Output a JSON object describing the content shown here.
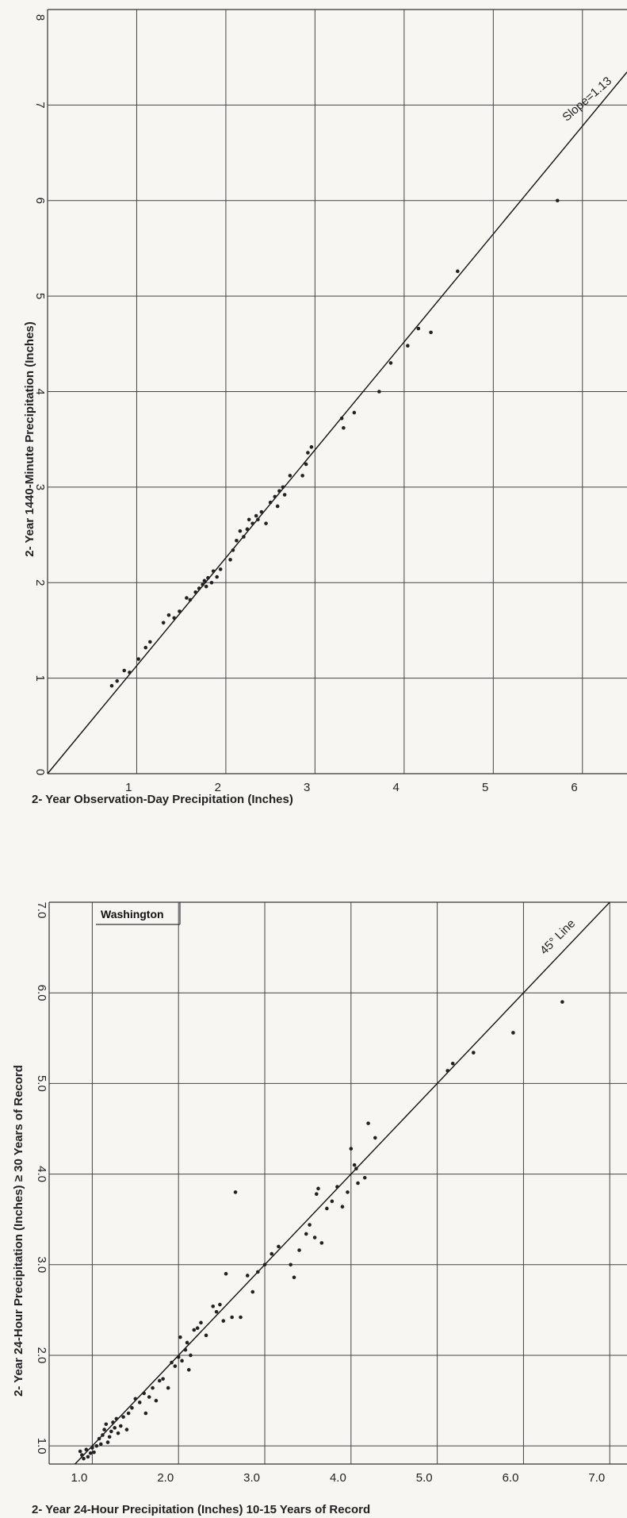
{
  "chart_data": [
    {
      "type": "scatter",
      "title": "",
      "xlabel": "2- Year Observation-Day Precipitation (Inches)",
      "ylabel": "2- Year 1440-Minute Precipitation (Inches)",
      "xlim": [
        0,
        6.5
      ],
      "ylim": [
        0,
        8
      ],
      "x_ticks": [
        1,
        2,
        3,
        4,
        5,
        6
      ],
      "x_tick_labels": [
        "1",
        "2",
        "3",
        "4",
        "5",
        "6"
      ],
      "y_ticks": [
        0,
        1,
        2,
        3,
        4,
        5,
        6,
        7,
        8
      ],
      "y_tick_labels": [
        "0",
        "1",
        "2",
        "3",
        "4",
        "5",
        "6",
        "7",
        "8"
      ],
      "grid": true,
      "reference_line": {
        "slope": 1.13,
        "intercept": 0,
        "label": "Slope=1.13"
      },
      "points": [
        [
          0.72,
          0.92
        ],
        [
          0.78,
          0.97
        ],
        [
          0.86,
          1.08
        ],
        [
          0.92,
          1.06
        ],
        [
          1.02,
          1.2
        ],
        [
          1.1,
          1.32
        ],
        [
          1.15,
          1.38
        ],
        [
          1.3,
          1.58
        ],
        [
          1.36,
          1.66
        ],
        [
          1.42,
          1.63
        ],
        [
          1.48,
          1.7
        ],
        [
          1.56,
          1.84
        ],
        [
          1.6,
          1.82
        ],
        [
          1.66,
          1.9
        ],
        [
          1.7,
          1.94
        ],
        [
          1.74,
          1.98
        ],
        [
          1.76,
          2.02
        ],
        [
          1.78,
          1.96
        ],
        [
          1.8,
          2.05
        ],
        [
          1.84,
          2.0
        ],
        [
          1.86,
          2.12
        ],
        [
          1.9,
          2.06
        ],
        [
          1.94,
          2.14
        ],
        [
          2.05,
          2.24
        ],
        [
          2.08,
          2.34
        ],
        [
          2.12,
          2.44
        ],
        [
          2.16,
          2.54
        ],
        [
          2.2,
          2.48
        ],
        [
          2.24,
          2.56
        ],
        [
          2.26,
          2.66
        ],
        [
          2.3,
          2.62
        ],
        [
          2.34,
          2.7
        ],
        [
          2.36,
          2.66
        ],
        [
          2.4,
          2.74
        ],
        [
          2.45,
          2.62
        ],
        [
          2.5,
          2.84
        ],
        [
          2.55,
          2.9
        ],
        [
          2.58,
          2.8
        ],
        [
          2.6,
          2.96
        ],
        [
          2.64,
          3.0
        ],
        [
          2.66,
          2.92
        ],
        [
          2.72,
          3.12
        ],
        [
          2.86,
          3.12
        ],
        [
          2.9,
          3.24
        ],
        [
          2.92,
          3.36
        ],
        [
          2.96,
          3.42
        ],
        [
          3.3,
          3.72
        ],
        [
          3.32,
          3.62
        ],
        [
          3.44,
          3.78
        ],
        [
          3.72,
          4.0
        ],
        [
          3.85,
          4.3
        ],
        [
          4.04,
          4.48
        ],
        [
          4.16,
          4.66
        ],
        [
          4.3,
          4.62
        ],
        [
          4.6,
          5.26
        ],
        [
          5.72,
          6.0
        ]
      ]
    },
    {
      "type": "scatter",
      "title": "",
      "inset_label": "Washington",
      "xlabel": "2- Year 24-Hour Precipitation (Inches) 10-15 Years of Record",
      "ylabel": "2- Year 24-Hour Precipitation (Inches) ≥ 30 Years of Record",
      "xlim": [
        0.5,
        7.2
      ],
      "ylim": [
        0.8,
        7.0
      ],
      "x_ticks": [
        1.0,
        2.0,
        3.0,
        4.0,
        5.0,
        6.0,
        7.0
      ],
      "x_tick_labels": [
        "1.0",
        "2.0",
        "3.0",
        "4.0",
        "5.0",
        "6.0",
        "7.0"
      ],
      "y_ticks": [
        1.0,
        2.0,
        3.0,
        4.0,
        5.0,
        6.0,
        7.0
      ],
      "y_tick_labels": [
        "1.0",
        "2.0",
        "3.0",
        "4.0",
        "5.0",
        "6.0",
        "7.0"
      ],
      "grid": true,
      "reference_line": {
        "slope": 1,
        "intercept": 0,
        "label": "45° Line"
      },
      "points": [
        [
          0.86,
          0.94
        ],
        [
          0.88,
          0.9
        ],
        [
          0.9,
          0.86
        ],
        [
          0.93,
          0.96
        ],
        [
          0.95,
          0.88
        ],
        [
          0.98,
          0.92
        ],
        [
          1.0,
          0.98
        ],
        [
          1.02,
          0.93
        ],
        [
          1.05,
          1.0
        ],
        [
          1.08,
          1.08
        ],
        [
          1.1,
          1.02
        ],
        [
          1.12,
          1.12
        ],
        [
          1.14,
          1.18
        ],
        [
          1.16,
          1.24
        ],
        [
          1.18,
          1.04
        ],
        [
          1.2,
          1.1
        ],
        [
          1.22,
          1.16
        ],
        [
          1.24,
          1.26
        ],
        [
          1.26,
          1.2
        ],
        [
          1.28,
          1.3
        ],
        [
          1.3,
          1.14
        ],
        [
          1.33,
          1.22
        ],
        [
          1.36,
          1.32
        ],
        [
          1.4,
          1.18
        ],
        [
          1.42,
          1.36
        ],
        [
          1.46,
          1.42
        ],
        [
          1.5,
          1.52
        ],
        [
          1.55,
          1.48
        ],
        [
          1.6,
          1.58
        ],
        [
          1.62,
          1.36
        ],
        [
          1.66,
          1.54
        ],
        [
          1.7,
          1.64
        ],
        [
          1.74,
          1.5
        ],
        [
          1.78,
          1.72
        ],
        [
          1.82,
          1.74
        ],
        [
          1.88,
          1.64
        ],
        [
          1.92,
          1.92
        ],
        [
          1.96,
          1.88
        ],
        [
          2.0,
          1.98
        ],
        [
          2.02,
          2.2
        ],
        [
          2.04,
          1.94
        ],
        [
          2.08,
          2.06
        ],
        [
          2.1,
          2.14
        ],
        [
          2.12,
          1.84
        ],
        [
          2.14,
          2.0
        ],
        [
          2.18,
          2.28
        ],
        [
          2.22,
          2.3
        ],
        [
          2.26,
          2.36
        ],
        [
          2.32,
          2.22
        ],
        [
          2.4,
          2.54
        ],
        [
          2.44,
          2.48
        ],
        [
          2.48,
          2.56
        ],
        [
          2.52,
          2.38
        ],
        [
          2.55,
          2.9
        ],
        [
          2.62,
          2.42
        ],
        [
          2.66,
          3.8
        ],
        [
          2.72,
          2.42
        ],
        [
          2.8,
          2.88
        ],
        [
          2.86,
          2.7
        ],
        [
          2.92,
          2.92
        ],
        [
          3.0,
          3.0
        ],
        [
          3.08,
          3.12
        ],
        [
          3.16,
          3.2
        ],
        [
          3.3,
          3.0
        ],
        [
          3.34,
          2.86
        ],
        [
          3.4,
          3.16
        ],
        [
          3.48,
          3.34
        ],
        [
          3.52,
          3.44
        ],
        [
          3.58,
          3.3
        ],
        [
          3.6,
          3.78
        ],
        [
          3.62,
          3.84
        ],
        [
          3.66,
          3.24
        ],
        [
          3.72,
          3.62
        ],
        [
          3.78,
          3.7
        ],
        [
          3.84,
          3.86
        ],
        [
          3.9,
          3.64
        ],
        [
          3.96,
          3.8
        ],
        [
          4.0,
          4.28
        ],
        [
          4.04,
          4.1
        ],
        [
          4.06,
          4.06
        ],
        [
          4.08,
          3.9
        ],
        [
          4.16,
          3.96
        ],
        [
          4.2,
          4.56
        ],
        [
          4.28,
          4.4
        ],
        [
          5.12,
          5.14
        ],
        [
          5.18,
          5.22
        ],
        [
          5.42,
          5.34
        ],
        [
          5.88,
          5.56
        ],
        [
          6.45,
          5.9
        ]
      ]
    }
  ]
}
